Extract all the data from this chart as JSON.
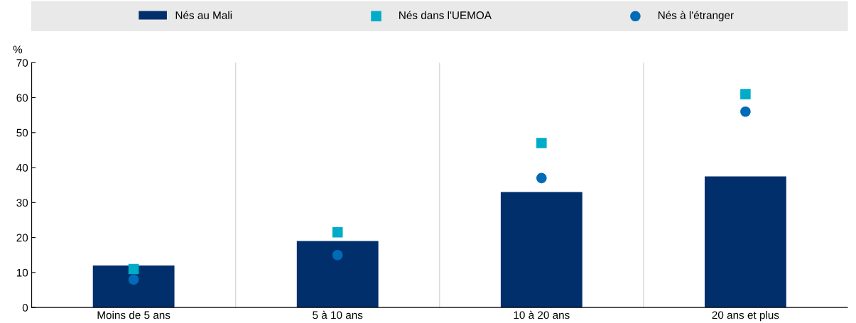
{
  "chart_data": {
    "type": "bar",
    "ylabel": "%",
    "categories": [
      "Moins de 5 ans",
      "5 à 10 ans",
      "10 à 20 ans",
      "20 ans et plus"
    ],
    "series": [
      {
        "name": "Nés au Mali",
        "color": "#002f6c",
        "values": [
          12,
          19,
          33,
          37.5
        ]
      },
      {
        "name": "Nés dans l'UEMOA",
        "color": "#00acc8",
        "type": "scatter",
        "marker": "square",
        "values": [
          11,
          21.5,
          47,
          61
        ]
      },
      {
        "name": "Nés à l'étranger",
        "color": "#006bb6",
        "type": "scatter",
        "marker": "circle",
        "values": [
          8,
          15,
          37,
          56
        ]
      }
    ],
    "ylim": [
      0,
      70
    ],
    "yticks": [
      0,
      10,
      20,
      30,
      40,
      50,
      60,
      70
    ],
    "grid": "x",
    "legend": "top"
  }
}
